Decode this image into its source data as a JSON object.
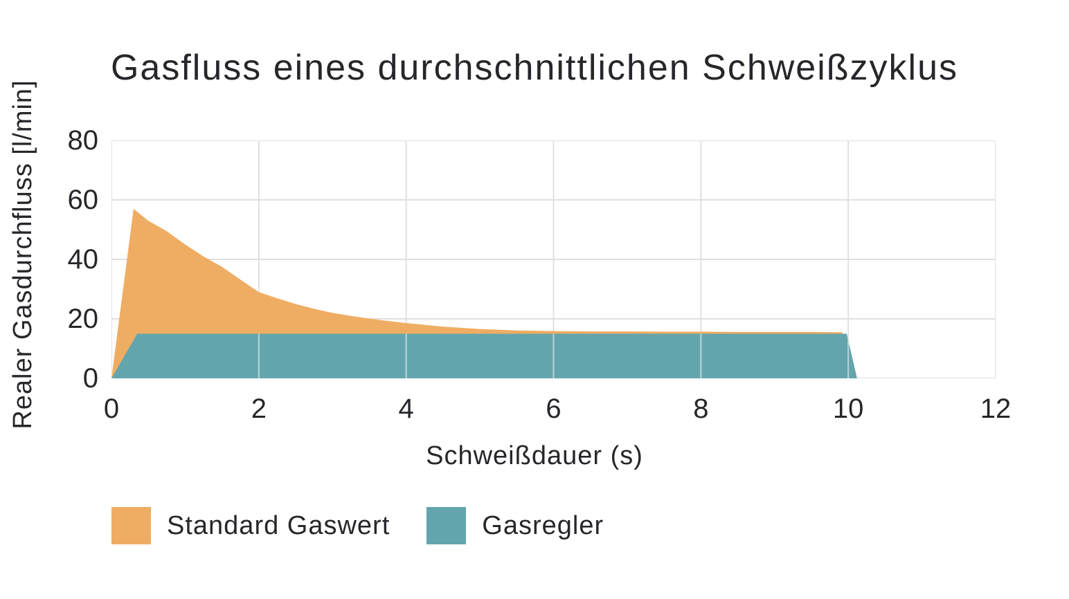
{
  "colors": {
    "background": "#FFFFFF",
    "grid": "#E0E0E3",
    "grid_overlay_on_area": "rgba(255,255,255,0.55)",
    "text": "#26262B",
    "accent_orange": "#EFAD63",
    "accent_teal": "#63A5AC"
  },
  "chart_data": {
    "type": "area",
    "title": "Gasfluss eines durchschnittlichen Schweißzyklus",
    "xlabel": "Schweißdauer (s)",
    "ylabel": "Realer Gasdurchfluss  [l/min]",
    "xlim": [
      0,
      12
    ],
    "ylim": [
      0,
      80
    ],
    "x_ticks": [
      0,
      2,
      4,
      6,
      8,
      10,
      12
    ],
    "y_ticks": [
      0,
      20,
      40,
      60,
      80
    ],
    "grid": true,
    "legend_position": "bottom-left",
    "series": [
      {
        "name": "Standard Gaswert",
        "color": "#EFAD63",
        "points": [
          [
            0,
            0
          ],
          [
            0.3,
            57
          ],
          [
            0.5,
            53
          ],
          [
            0.75,
            49.5
          ],
          [
            1,
            45
          ],
          [
            1.25,
            41
          ],
          [
            1.5,
            37.5
          ],
          [
            1.75,
            33.2
          ],
          [
            2,
            29
          ],
          [
            2.25,
            26.9
          ],
          [
            2.5,
            25
          ],
          [
            2.75,
            23.4
          ],
          [
            3,
            22
          ],
          [
            3.25,
            21
          ],
          [
            3.5,
            20.1
          ],
          [
            3.75,
            19.3
          ],
          [
            4,
            18.6
          ],
          [
            4.25,
            18
          ],
          [
            4.5,
            17.4
          ],
          [
            5,
            16.6
          ],
          [
            5.5,
            16.1
          ],
          [
            6,
            15.9
          ],
          [
            6.5,
            15.8
          ],
          [
            7,
            15.8
          ],
          [
            7.5,
            15.7
          ],
          [
            8,
            15.7
          ],
          [
            8.5,
            15.6
          ],
          [
            9,
            15.6
          ],
          [
            9.5,
            15.6
          ],
          [
            9.92,
            15.5
          ],
          [
            9.95,
            0
          ]
        ]
      },
      {
        "name": "Gasregler",
        "color": "#63A5AC",
        "points": [
          [
            0,
            0
          ],
          [
            0.35,
            15
          ],
          [
            9.98,
            15
          ],
          [
            10.12,
            0
          ]
        ]
      }
    ]
  }
}
